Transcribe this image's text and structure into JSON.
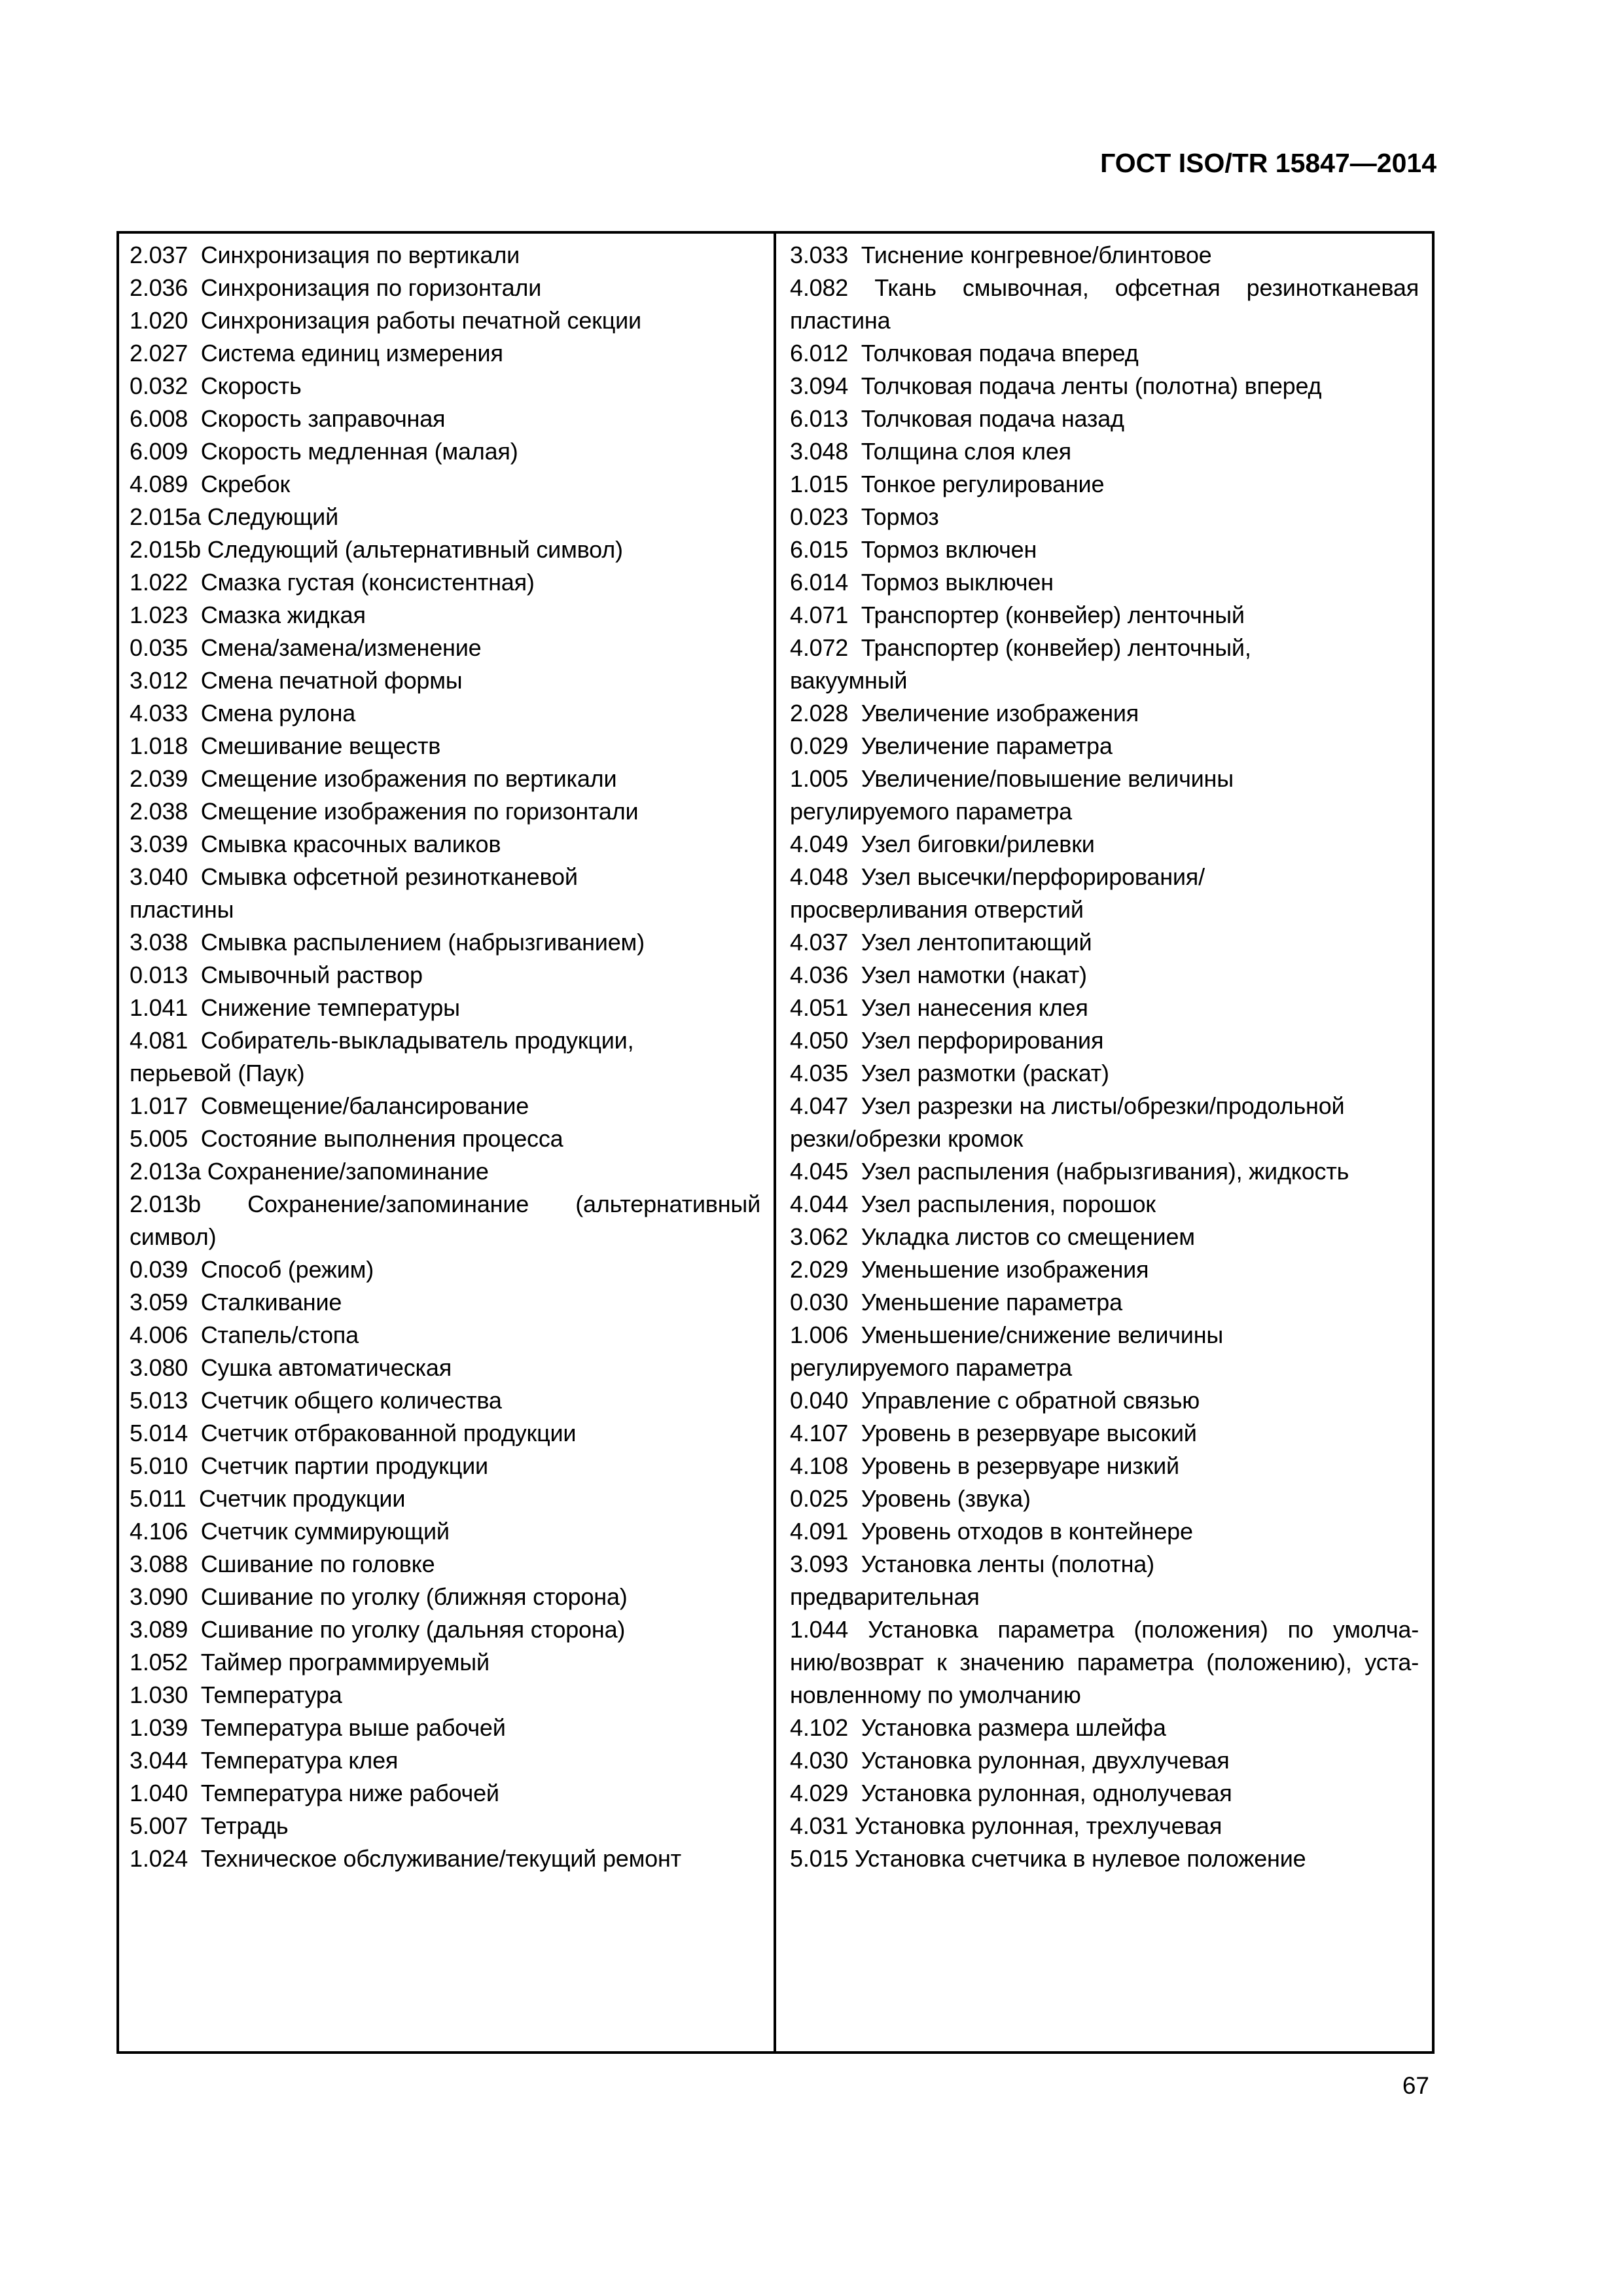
{
  "page": {
    "header": "ГОСТ ISO/TR 15847—2014",
    "page_number": "67"
  },
  "table": {
    "left_column": {
      "lines": [
        {
          "t": "2.037  Синхронизация по вертикали"
        },
        {
          "t": "2.036  Синхронизация по горизонтали"
        },
        {
          "t": "1.020  Синхронизация работы печатной секции"
        },
        {
          "t": "2.027  Система единиц измерения"
        },
        {
          "t": "0.032  Скорость"
        },
        {
          "t": "6.008  Скорость заправочная"
        },
        {
          "t": "6.009  Скорость медленная (малая)"
        },
        {
          "t": "4.089  Скребок"
        },
        {
          "t": "2.015a Следующий"
        },
        {
          "t": "2.015b Следующий (альтернативный символ)"
        },
        {
          "t": "1.022  Смазка густая (консистентная)"
        },
        {
          "t": "1.023  Смазка жидкая"
        },
        {
          "t": "0.035  Смена/замена/изменение"
        },
        {
          "t": "3.012  Смена печатной формы"
        },
        {
          "t": "4.033  Смена рулона"
        },
        {
          "t": "1.018  Смешивание веществ"
        },
        {
          "t": "2.039  Смещение изображения по вертикали"
        },
        {
          "t": "2.038  Смещение изображения по горизонтали"
        },
        {
          "t": "3.039  Смывка красочных валиков"
        },
        {
          "t": "3.040  Смывка офсетной резинотканевой"
        },
        {
          "t": "пластины"
        },
        {
          "t": "3.038  Смывка распылением (набрызгиванием)"
        },
        {
          "t": "0.013  Смывочный раствор"
        },
        {
          "t": "1.041  Снижение температуры"
        },
        {
          "t": "4.081  Собиратель-выкладыватель продукции,"
        },
        {
          "t": "перьевой (Паук)"
        },
        {
          "t": "1.017  Совмещение/балансирование"
        },
        {
          "t": "5.005  Состояние выполнения процесса"
        },
        {
          "t": "2.013a Сохранение/запоминание"
        },
        {
          "t": "2.013b Сохранение/запоминание (альтернативный",
          "j": true
        },
        {
          "t": "символ)"
        },
        {
          "t": "0.039  Способ (режим)"
        },
        {
          "t": "3.059  Сталкивание"
        },
        {
          "t": "4.006  Стапель/стопа"
        },
        {
          "t": "3.080  Сушка автоматическая"
        },
        {
          "t": "5.013  Счетчик общего количества"
        },
        {
          "t": "5.014  Счетчик отбракованной продукции"
        },
        {
          "t": "5.010  Счетчик партии продукции"
        },
        {
          "t": "5.011  Счетчик продукции"
        },
        {
          "t": "4.106  Счетчик суммирующий"
        },
        {
          "t": "3.088  Сшивание по головке"
        },
        {
          "t": "3.090  Сшивание по уголку (ближняя сторона)"
        },
        {
          "t": "3.089  Сшивание по уголку (дальняя сторона)"
        },
        {
          "t": "1.052  Таймер программируемый"
        },
        {
          "t": "1.030  Температура"
        },
        {
          "t": "1.039  Температура выше рабочей"
        },
        {
          "t": "3.044  Температура клея"
        },
        {
          "t": "1.040  Температура ниже рабочей"
        },
        {
          "t": "5.007  Тетрадь"
        },
        {
          "t": "1.024  Техническое обслуживание/текущий ремонт"
        }
      ]
    },
    "right_column": {
      "lines": [
        {
          "t": "3.033  Тиснение конгревное/блинтовое"
        },
        {
          "t": "4.082 Ткань смывочная, офсетная резинотканевая",
          "j": true
        },
        {
          "t": "пластина"
        },
        {
          "t": "6.012  Толчковая подача вперед"
        },
        {
          "t": "3.094  Толчковая подача ленты (полотна) вперед"
        },
        {
          "t": "6.013  Толчковая подача назад"
        },
        {
          "t": "3.048  Толщина слоя клея"
        },
        {
          "t": "1.015  Тонкое регулирование"
        },
        {
          "t": "0.023  Тормоз"
        },
        {
          "t": "6.015  Тормоз включен"
        },
        {
          "t": "6.014  Тормоз выключен"
        },
        {
          "t": "4.071  Транспортер (конвейер) ленточный"
        },
        {
          "t": "4.072  Транспортер (конвейер) ленточный,"
        },
        {
          "t": "вакуумный"
        },
        {
          "t": "2.028  Увеличение изображения"
        },
        {
          "t": "0.029  Увеличение параметра"
        },
        {
          "t": "1.005  Увеличение/повышение величины"
        },
        {
          "t": "регулируемого параметра"
        },
        {
          "t": "4.049  Узел биговки/рилевки"
        },
        {
          "t": "4.048  Узел высечки/перфорирования/"
        },
        {
          "t": "просверливания отверстий"
        },
        {
          "t": "4.037  Узел лентопитающий"
        },
        {
          "t": "4.036  Узел намотки (накат)"
        },
        {
          "t": "4.051  Узел нанесения клея"
        },
        {
          "t": "4.050  Узел перфорирования"
        },
        {
          "t": "4.035  Узел размотки (раскат)"
        },
        {
          "t": "4.047  Узел разрезки на листы/обрезки/продольной"
        },
        {
          "t": "резки/обрезки кромок"
        },
        {
          "t": "4.045  Узел распыления (набрызгивания), жидкость"
        },
        {
          "t": "4.044  Узел распыления, порошок"
        },
        {
          "t": "3.062  Укладка листов со смещением"
        },
        {
          "t": "2.029  Уменьшение изображения"
        },
        {
          "t": "0.030  Уменьшение параметра"
        },
        {
          "t": "1.006  Уменьшение/снижение величины"
        },
        {
          "t": "регулируемого параметра"
        },
        {
          "t": "0.040  Управление с обратной связью"
        },
        {
          "t": "4.107  Уровень в резервуаре высокий"
        },
        {
          "t": "4.108  Уровень в резервуаре низкий"
        },
        {
          "t": "0.025  Уровень (звука)"
        },
        {
          "t": "4.091  Уровень отходов в контейнере"
        },
        {
          "t": "3.093  Установка ленты (полотна)"
        },
        {
          "t": "предварительная"
        },
        {
          "t": "1.044 Установка параметра (положения) по умолча-",
          "j": true
        },
        {
          "t": "нию/возврат к значению параметра (положению), уста-",
          "j": true
        },
        {
          "t": "новленному по умолчанию"
        },
        {
          "t": "4.102  Установка размера шлейфа"
        },
        {
          "t": "4.030  Установка рулонная, двухлучевая"
        },
        {
          "t": "4.029  Установка рулонная, однолучевая"
        },
        {
          "t": "4.031 Установка рулонная, трехлучевая"
        },
        {
          "t": "5.015 Установка счетчика в нулевое положение"
        }
      ]
    }
  }
}
